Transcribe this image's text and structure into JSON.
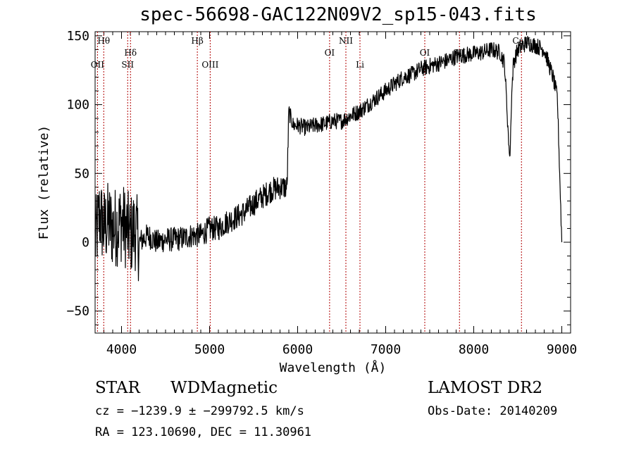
{
  "chart_data": {
    "type": "line",
    "title": "spec-56698-GAC122N09V2_sp15-043.fits",
    "xlabel": "Wavelength (Å)",
    "ylabel": "Flux (relative)",
    "xlim": [
      3700,
      9100
    ],
    "ylim": [
      -66,
      153
    ],
    "xticks": [
      4000,
      5000,
      6000,
      7000,
      8000,
      9000
    ],
    "yticks": [
      -50,
      0,
      50,
      100,
      150
    ],
    "grid": false,
    "line_color": "#000000",
    "marker_color": "#b00000",
    "series": [
      {
        "x": [
          3700,
          3750,
          3800,
          3850,
          3900,
          3950,
          4000,
          4050,
          4100,
          4150,
          4200,
          4300,
          4400,
          4500,
          4600,
          4700,
          4800,
          4900,
          5000,
          5100,
          5200,
          5300,
          5400,
          5500,
          5600,
          5700,
          5800,
          5850,
          5880,
          5900,
          5950,
          6000,
          6100,
          6200,
          6300,
          6400,
          6500,
          6600,
          6700,
          6800,
          6900,
          7000,
          7100,
          7200,
          7300,
          7400,
          7500,
          7600,
          7700,
          7800,
          7900,
          8000,
          8100,
          8200,
          8300,
          8350,
          8400,
          8450,
          8500,
          8600,
          8700,
          8800,
          8850,
          8900,
          8950,
          9000
        ],
        "y": [
          0,
          20,
          10,
          15,
          10,
          12,
          15,
          10,
          5,
          10,
          0,
          5,
          0,
          2,
          2,
          3,
          5,
          5,
          10,
          10,
          15,
          18,
          22,
          28,
          33,
          38,
          40,
          40,
          40,
          95,
          85,
          85,
          83,
          85,
          86,
          88,
          88,
          92,
          95,
          100,
          105,
          110,
          115,
          120,
          122,
          126,
          128,
          130,
          132,
          135,
          136,
          137,
          138,
          140,
          138,
          130,
          70,
          130,
          140,
          145,
          143,
          140,
          130,
          120,
          105,
          0
        ]
      }
    ],
    "noise": [
      {
        "x_from": 3700,
        "x_to": 4200,
        "amplitude": 30
      },
      {
        "x_from": 4200,
        "x_to": 5900,
        "amplitude": 9
      },
      {
        "x_from": 5900,
        "x_to": 9000,
        "amplitude": 6
      }
    ],
    "absorption": [
      {
        "x": 8410,
        "y": 62
      }
    ],
    "line_markers": [
      {
        "label": "OII",
        "x": 3727,
        "row": 2
      },
      {
        "label": "Hθ",
        "x": 3798,
        "row": 0
      },
      {
        "label": "SII",
        "x": 4070,
        "row": 2
      },
      {
        "label": "Hδ",
        "x": 4102,
        "row": 1
      },
      {
        "label": "Hβ",
        "x": 4861,
        "row": 0
      },
      {
        "label": "OIII",
        "x": 5007,
        "row": 2
      },
      {
        "label": "OI",
        "x": 6363,
        "row": 1
      },
      {
        "label": "NII",
        "x": 6548,
        "row": 0
      },
      {
        "label": "Li",
        "x": 6708,
        "row": 2
      },
      {
        "label": "OI",
        "x": 7444,
        "row": 1
      },
      {
        "label": "SII",
        "x": 7838,
        "row": 1
      },
      {
        "label": "CaII",
        "x": 8542,
        "row": 0
      }
    ]
  },
  "footer": {
    "class": "STAR",
    "subclass": "WDMagnetic",
    "survey": "LAMOST DR2",
    "cz": "cz = −1239.9 ± −299792.5 km/s",
    "obs_date": "Obs-Date: 20140209",
    "radec": "RA = 123.10690, DEC =  11.30961"
  }
}
